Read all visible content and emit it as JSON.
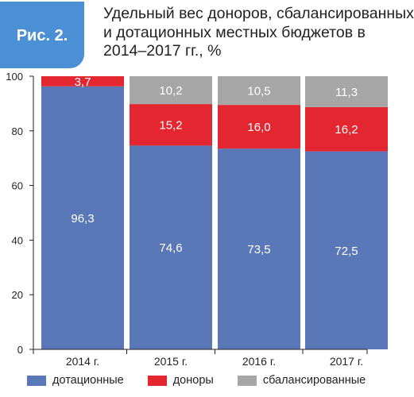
{
  "figure": {
    "badge": "Рис. 2.",
    "title_lines": [
      "Удельный вес доноров, сбалансированных",
      "и дотационных местных бюджетов в",
      "2014–2017 гг., %"
    ]
  },
  "chart_data": {
    "type": "bar",
    "stacked": true,
    "title": "Удельный вес доноров, сбалансированных и дотационных местных бюджетов в 2014–2017 гг., %",
    "categories": [
      "2014 г.",
      "2015 г.",
      "2016 г.",
      "2017 г."
    ],
    "series": [
      {
        "name": "дотационные",
        "color": "#5a77b8",
        "values": [
          96.3,
          74.6,
          73.5,
          72.5
        ],
        "labels": [
          "96,3",
          "74,6",
          "73,5",
          "72,5"
        ]
      },
      {
        "name": "доноры",
        "color": "#e3262f",
        "values": [
          3.7,
          15.2,
          16.0,
          16.2
        ],
        "labels": [
          "3,7",
          "15,2",
          "16,0",
          "16,2"
        ]
      },
      {
        "name": "сбалансированные",
        "color": "#a6a6a6",
        "values": [
          0,
          10.2,
          10.5,
          11.3
        ],
        "labels": [
          "",
          "10,2",
          "10,5",
          "11,3"
        ]
      }
    ],
    "yticks": [
      0,
      20,
      40,
      60,
      80,
      100
    ],
    "ylim": [
      0,
      100
    ],
    "xlabel": "",
    "ylabel": "",
    "grid": false,
    "legend": "bottom"
  }
}
